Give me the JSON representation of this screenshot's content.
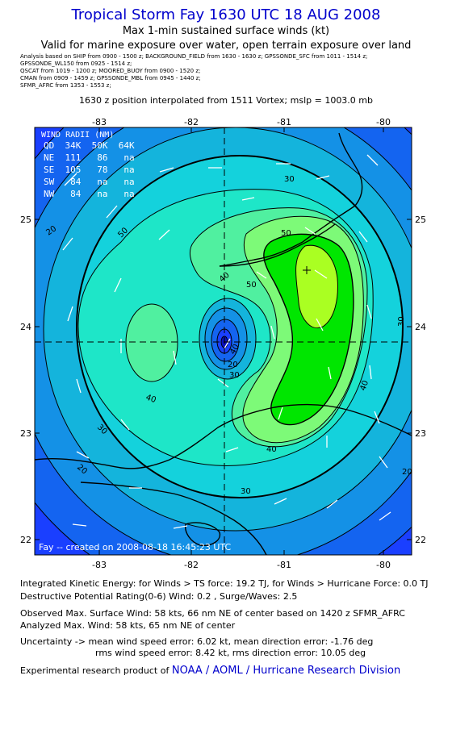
{
  "header": {
    "title": "Tropical Storm Fay 1630 UTC 18 AUG 2008",
    "subtitle1": "Max 1-min sustained surface winds (kt)",
    "subtitle2": "Valid for marine exposure over water, open terrain exposure over land",
    "sources": [
      "Analysis based on   SHIP from 0900 - 1500 z;   BACKGROUND_FIELD from 1630 - 1630 z;  GPSSONDE_SFC from 1011 - 1514 z;",
      "GPSSONDE_WL150 from 0925 - 1514 z;",
      "QSCAT from 1019 - 1200 z;   MOORED_BUOY from 0900 - 1520 z;",
      "CMAN from 0909 - 1459 z;   GPSSONDE_MBL from 0945 - 1440 z;",
      "SFMR_AFRC from 1353 - 1553 z;"
    ],
    "position_note": "1630 z position interpolated from 1511 Vortex; mslp = 1003.0 mb"
  },
  "map": {
    "lon_ticks": [
      "-83",
      "-82",
      "-81",
      "-80"
    ],
    "lat_ticks": [
      "25",
      "24",
      "23",
      "22"
    ],
    "contour_labels": [
      "20",
      "20",
      "30",
      "30",
      "30",
      "30",
      "30",
      "40",
      "40",
      "40",
      "40",
      "40",
      "50",
      "50",
      "50",
      "20",
      "20"
    ],
    "wind_radii": {
      "title": "WIND RADII (NM)",
      "header": "QD  34K  50K  64K",
      "rows": [
        "NE  111   86   na",
        "SE  105   78   na",
        "SW   84   na   na",
        "NW   84   na   na"
      ]
    },
    "footer_text": "Fay -- created on 2008-08-18 16:45:23 UTC",
    "colors": {
      "ring0": "#1a3fff",
      "ring1": "#1464f0",
      "ring2": "#1491e6",
      "ring3": "#14b4dc",
      "ring4": "#14d2dc",
      "ring5": "#1ee6c8",
      "ring6": "#50f0a0",
      "ring7": "#7dfa78",
      "max1": "#00e600",
      "max2": "#aaff22",
      "land": "#000000",
      "vectors": "#ffffff"
    }
  },
  "stats": {
    "ike": "Integrated Kinetic Energy:  for Winds > TS force: 19.2 TJ,  for Winds > Hurricane Force: 0.0 TJ",
    "dpr": "Destructive Potential Rating(0-6)   Wind: 0.2 , Surge/Waves: 2.5",
    "observed": "Observed Max. Surface Wind: 58 kts, 66 nm NE of center based on 1420 z SFMR_AFRC",
    "analyzed": "Analyzed Max. Wind: 58 kts, 65 nm NE of center",
    "uncertainty1": "Uncertainty -> mean wind speed error: 6.02 kt,   mean direction error:  -1.76 deg",
    "uncertainty2": "rms wind speed error: 8.42 kt,   rms direction error: 10.05 deg",
    "credit_prefix": "Experimental research product of",
    "credit_org": "NOAA / AOML / Hurricane Research Division"
  }
}
